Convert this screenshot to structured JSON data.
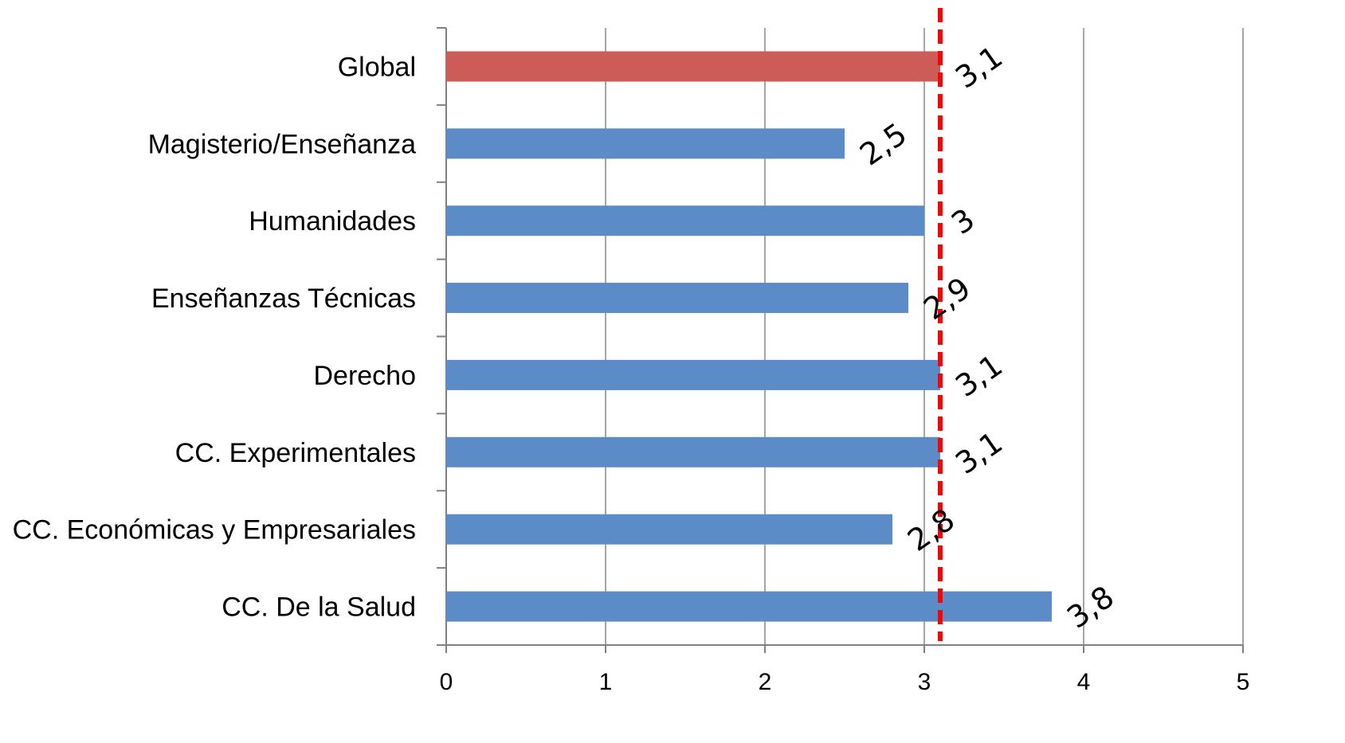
{
  "chart_data": {
    "type": "bar",
    "orientation": "horizontal",
    "title": "",
    "xlabel": "",
    "ylabel": "",
    "categories": [
      "Global",
      "Magisterio/Enseñanza",
      "Humanidades",
      "Enseñanzas Técnicas",
      "Derecho",
      "CC. Experimentales",
      "CC. Económicas y Empresariales",
      "CC. De la Salud"
    ],
    "values": [
      3.1,
      2.5,
      3.0,
      2.9,
      3.1,
      3.1,
      2.8,
      3.8
    ],
    "data_labels": [
      "3,1",
      "2,5",
      "3",
      "2,9",
      "3,1",
      "3,1",
      "2,8",
      "3,8"
    ],
    "xlim": [
      0,
      5
    ],
    "x_ticks": [
      "0",
      "1",
      "2",
      "3",
      "4",
      "5"
    ],
    "reference_line": {
      "value": 3.1,
      "style": "dashed",
      "color": "#ff0000"
    },
    "colors": {
      "highlight": "#cd5b57",
      "bar": "#5b8cc8",
      "grid": "#a6a6a6"
    },
    "grid": true,
    "legend": "none"
  }
}
